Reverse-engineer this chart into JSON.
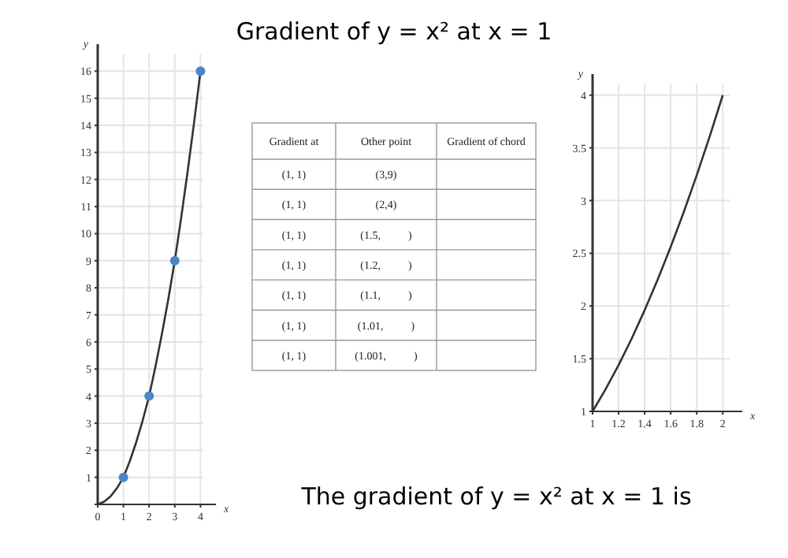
{
  "chart_data": [
    {
      "type": "line",
      "xlabel": "x",
      "ylabel": "y",
      "xlim": [
        0,
        4.6
      ],
      "ylim": [
        0,
        17
      ],
      "xticks": [
        {
          "value": 0,
          "label": "0"
        },
        1,
        2,
        3,
        4
      ],
      "yticks": [
        {
          "value": 0,
          "label": null
        },
        1,
        2,
        3,
        4,
        5,
        6,
        7,
        8,
        9,
        10,
        11,
        12,
        13,
        14,
        15,
        16
      ],
      "grid": true,
      "series": [
        {
          "type": "line",
          "color": "#333333",
          "marker": "none",
          "x": [
            0,
            0.25,
            0.5,
            0.75,
            1,
            1.25,
            1.5,
            1.75,
            2,
            2.25,
            2.5,
            2.75,
            3,
            3.25,
            3.5,
            3.75,
            4
          ],
          "values": [
            0,
            0.1,
            0.3,
            0.6,
            1,
            1.6,
            2.3,
            3.1,
            4,
            5.1,
            6.3,
            7.6,
            9,
            10.6,
            12.3,
            14.1,
            16
          ]
        },
        {
          "type": "scatter",
          "color": "#4a86c8",
          "marker": "circle",
          "x": [
            1,
            2,
            3,
            4
          ],
          "values": [
            1,
            4,
            9,
            16
          ]
        }
      ]
    },
    {
      "type": "other",
      "title": "Gradient of y = x² at x = 1",
      "subtitle": "The gradient of y = x² at x = 1 is",
      "categories": [
        "Gradient at",
        "Other point",
        "Gradient of chord"
      ],
      "annotations": [
        "(1, 1)",
        "(3,9)",
        "(1, 1)",
        "(2,4)",
        "(1, 1)",
        "(1.5,          )",
        "(1, 1)",
        "(1.2,          )",
        "(1, 1)",
        "(1.1,          )",
        "(1, 1)",
        "(1.01,          )",
        "(1, 1)",
        "(1.001,          )"
      ]
    },
    {
      "type": "line",
      "xlabel": "x",
      "ylabel": "y",
      "xlim": [
        1,
        2.15
      ],
      "ylim": [
        1,
        4.2
      ],
      "xticks": [
        1,
        1.2,
        1.4,
        1.6,
        1.8,
        2
      ],
      "yticks": [
        1,
        1.5,
        2,
        2.5,
        3,
        3.5,
        4
      ],
      "grid": true,
      "series": [
        {
          "type": "line",
          "color": "#333333",
          "marker": "none",
          "x": [
            1,
            1.1,
            1.2,
            1.3,
            1.4,
            1.5,
            1.6,
            1.7,
            1.8,
            1.9,
            2
          ],
          "values": [
            1,
            1.21,
            1.44,
            1.69,
            1.96,
            2.25,
            2.56,
            2.89,
            3.24,
            3.61,
            4
          ]
        }
      ]
    }
  ]
}
